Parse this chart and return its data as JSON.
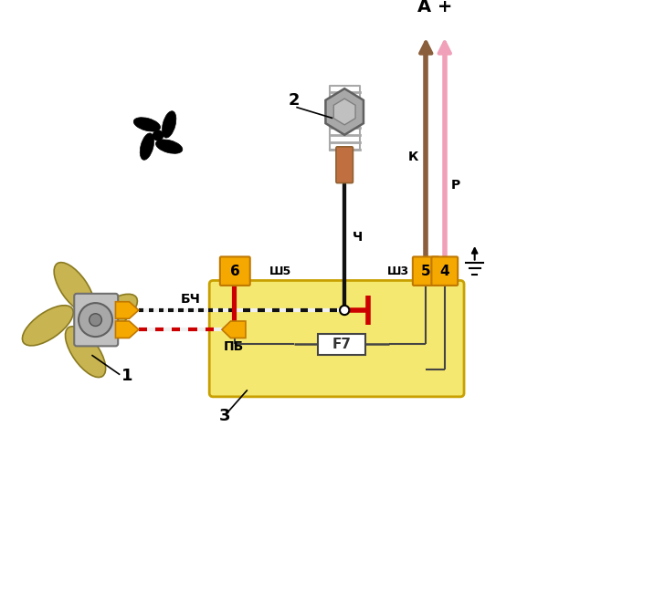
{
  "bg": "#ffffff",
  "blade_fill": "#c8b450",
  "blade_edge": "#8a7a20",
  "hub_fill": "#b8b8b8",
  "hub_edge": "#606060",
  "conn_fill": "#f5a800",
  "conn_edge": "#c07800",
  "relay_fill": "#f5e870",
  "relay_edge": "#c8a000",
  "wire_black": "#111111",
  "wire_white": "#f0f0f0",
  "wire_red": "#cc0000",
  "wire_brown": "#8B5E3C",
  "wire_pink": "#f0a0b8",
  "sensor_bolt": "#a8a8a8",
  "sensor_tip": "#c07040",
  "fuse_color": "#444444",
  "text_color": "#111111",
  "pin_fill": "#f5a800",
  "pin_edge": "#c07800",
  "label_BCh": "БЧ",
  "label_PB": "ПБ",
  "label_Ch": "Ч",
  "label_K": "К",
  "label_P": "Р",
  "label_A": "А +",
  "label_Sh5": "Ш5",
  "label_Sh3": "Ш3",
  "label_F7": "F7",
  "figw": 7.16,
  "figh": 6.5,
  "dpi": 100
}
